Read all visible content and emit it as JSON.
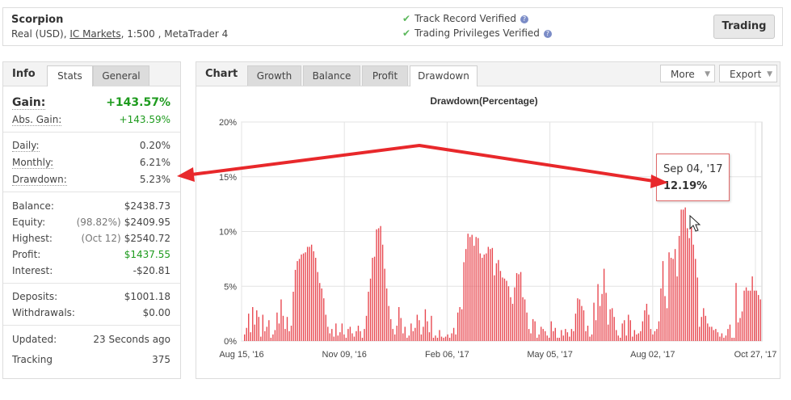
{
  "header": {
    "name": "Scorpion",
    "account_type": "Real (USD),",
    "broker": "IC Markets",
    "details": ", 1:500 , MetaTrader 4",
    "verifications": [
      "Track Record Verified",
      "Trading Privileges Verified"
    ],
    "trading_button": "Trading"
  },
  "info": {
    "title": "Info",
    "tabs": [
      "Stats",
      "General"
    ],
    "gain_label": "Gain:",
    "gain_value": "+143.57%",
    "abs_gain_label": "Abs. Gain:",
    "abs_gain_value": "+143.59%",
    "daily_label": "Daily:",
    "daily_value": "0.20%",
    "monthly_label": "Monthly:",
    "monthly_value": "6.21%",
    "drawdown_label": "Drawdown:",
    "drawdown_value": "5.23%",
    "balance_label": "Balance:",
    "balance_value": "$2438.73",
    "equity_label": "Equity:",
    "equity_note": "(98.82%)",
    "equity_value": "$2409.95",
    "highest_label": "Highest:",
    "highest_note": "(Oct 12)",
    "highest_value": "$2540.72",
    "profit_label": "Profit:",
    "profit_value": "$1437.55",
    "interest_label": "Interest:",
    "interest_value": "-$20.81",
    "deposits_label": "Deposits:",
    "deposits_value": "$1001.18",
    "withdrawals_label": "Withdrawals:",
    "withdrawals_value": "$0.00",
    "updated_label": "Updated:",
    "updated_value": "23 Seconds ago",
    "tracking_label": "Tracking",
    "tracking_value": "375"
  },
  "chart_panel": {
    "title": "Chart",
    "tabs": [
      "Growth",
      "Balance",
      "Profit",
      "Drawdown"
    ],
    "active_tab": "Drawdown",
    "more_button": "More",
    "export_button": "Export"
  },
  "tooltip": {
    "date": "Sep 04, '17",
    "value": "12.19%"
  },
  "colors": {
    "bar": "#e8474f",
    "arrow": "#e8282b",
    "gain_green": "#1e9b1e",
    "check_green": "#5cb85c"
  },
  "chart_data": {
    "type": "bar",
    "title": "Drawdown(Percentage)",
    "y_ticks": [
      "0%",
      "5%",
      "10%",
      "15%",
      "20%"
    ],
    "ylim": [
      0,
      20
    ],
    "x_ticks": [
      "Aug 15, '16",
      "Nov 09, '16",
      "Feb 06, '17",
      "May 05, '17",
      "Aug 02, '17",
      "Oct 27, '17"
    ],
    "grid": true,
    "values": [
      0.6,
      1.2,
      2.5,
      0.8,
      3.1,
      1.5,
      2.8,
      2.2,
      0.4,
      2.4,
      0.9,
      1.3,
      1.9,
      0.3,
      0.6,
      1.0,
      2.6,
      1.6,
      3.8,
      2.3,
      1.1,
      2.2,
      0.9,
      1.4,
      4.5,
      6.5,
      7.3,
      7.5,
      7.9,
      8.0,
      8.1,
      8.6,
      8.6,
      8.8,
      8.2,
      7.6,
      6.3,
      5.3,
      4.8,
      3.9,
      2.4,
      1.3,
      0.7,
      1.1,
      0.4,
      1.6,
      0.5,
      0.8,
      1.6,
      0.6,
      0.3,
      1.1,
      1.3,
      0.7,
      0.4,
      0.9,
      1.4,
      0.9,
      0.3,
      1.1,
      2.3,
      4.5,
      5.7,
      7.6,
      7.7,
      10.2,
      10.3,
      10.5,
      8.8,
      6.6,
      4.8,
      3.2,
      2.0,
      1.1,
      0.6,
      1.4,
      3.1,
      2.1,
      0.7,
      1.3,
      0.3,
      0.5,
      1.6,
      0.9,
      1.2,
      2.4,
      1.9,
      0.6,
      1.3,
      2.9,
      1.8,
      0.8,
      2.3,
      0.3,
      0.5,
      0.3,
      1.0,
      0.4,
      0.3,
      0.4,
      0.6,
      0.3,
      0.7,
      1.2,
      0.6,
      2.6,
      3.1,
      2.9,
      7.2,
      8.4,
      9.8,
      9.5,
      9.7,
      8.7,
      9.5,
      9.4,
      8.0,
      7.6,
      7.9,
      8.0,
      8.6,
      8.4,
      8.5,
      6.0,
      7.1,
      7.4,
      6.4,
      5.8,
      5.7,
      5.5,
      5.0,
      4.0,
      3.4,
      4.9,
      6.2,
      6.1,
      6.3,
      4.0,
      3.8,
      2.6,
      1.1,
      0.7,
      2.0,
      1.8,
      0.3,
      0.6,
      1.3,
      1.1,
      0.9,
      0.5,
      0.3,
      1.8,
      0.9,
      1.2,
      0.3,
      0.3,
      1.0,
      0.5,
      1.1,
      0.8,
      0.4,
      1.1,
      0.9,
      2.5,
      3.9,
      3.8,
      3.2,
      2.8,
      0.9,
      1.4,
      0.4,
      0.6,
      3.5,
      1.9,
      5.2,
      3.2,
      4.3,
      6.6,
      4.4,
      1.5,
      2.9,
      3.0,
      2.2,
      1.0,
      0.5,
      0.3,
      1.6,
      1.9,
      0.5,
      2.4,
      1.9,
      0.4,
      1.0,
      0.6,
      0.7,
      0.9,
      1.8,
      2.8,
      3.4,
      2.4,
      1.1,
      0.6,
      0.9,
      1.1,
      1.8,
      4.8,
      7.3,
      4.1,
      3.0,
      8.1,
      7.6,
      7.5,
      8.4,
      5.9,
      9.6,
      12.0,
      12.0,
      12.2,
      10.3,
      9.4,
      11.2,
      8.8,
      7.5,
      5.8,
      1.3,
      2.2,
      3.0,
      2.3,
      1.6,
      1.3,
      1.3,
      1.0,
      1.1,
      0.8,
      0.4,
      0.7,
      0.3,
      0.5,
      1.1,
      1.5,
      0.3,
      0.3,
      5.3,
      1.7,
      2.1,
      2.7,
      4.6,
      4.9,
      4.6,
      4.6,
      5.9,
      4.6,
      4.6,
      4.2,
      3.8
    ],
    "annotation": {
      "label": "Sep 04, '17",
      "value": 12.19
    }
  }
}
